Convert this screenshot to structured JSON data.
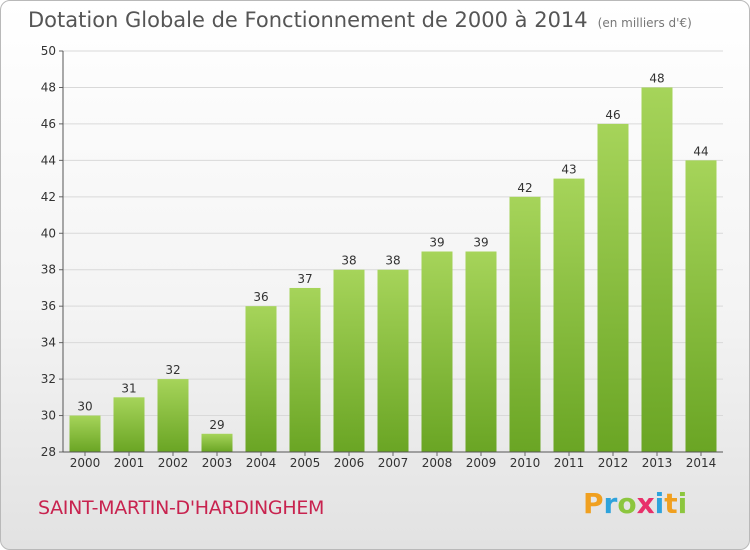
{
  "header": {
    "title": "Dotation Globale de Fonctionnement de 2000 à 2014",
    "unit": "(en milliers d'€)"
  },
  "footer": {
    "commune": "SAINT-MARTIN-D'HARDINGHEM",
    "logo_letters": [
      "P",
      "r",
      "o",
      "x",
      "i",
      "t",
      "i"
    ],
    "logo_colors": [
      "#f0a020",
      "#2ea3dc",
      "#8cc63e",
      "#e8306a",
      "#2ea3dc",
      "#f0a020",
      "#8cc63e"
    ]
  },
  "colors": {
    "bar_light": "#a6d45a",
    "bar_dark": "#6aa524",
    "grid": "#d9d9d9"
  },
  "chart_data": {
    "type": "bar",
    "title": "Dotation Globale de Fonctionnement de 2000 à 2014",
    "xlabel": "",
    "ylabel": "",
    "categories": [
      "2000",
      "2001",
      "2002",
      "2003",
      "2004",
      "2005",
      "2006",
      "2007",
      "2008",
      "2009",
      "2010",
      "2011",
      "2012",
      "2013",
      "2014"
    ],
    "values": [
      30,
      31,
      32,
      29,
      36,
      37,
      38,
      38,
      39,
      39,
      42,
      43,
      46,
      48,
      44
    ],
    "ylim": [
      28,
      50
    ],
    "yticks": [
      28,
      30,
      32,
      34,
      36,
      38,
      40,
      42,
      44,
      46,
      48,
      50
    ],
    "grid": true
  }
}
